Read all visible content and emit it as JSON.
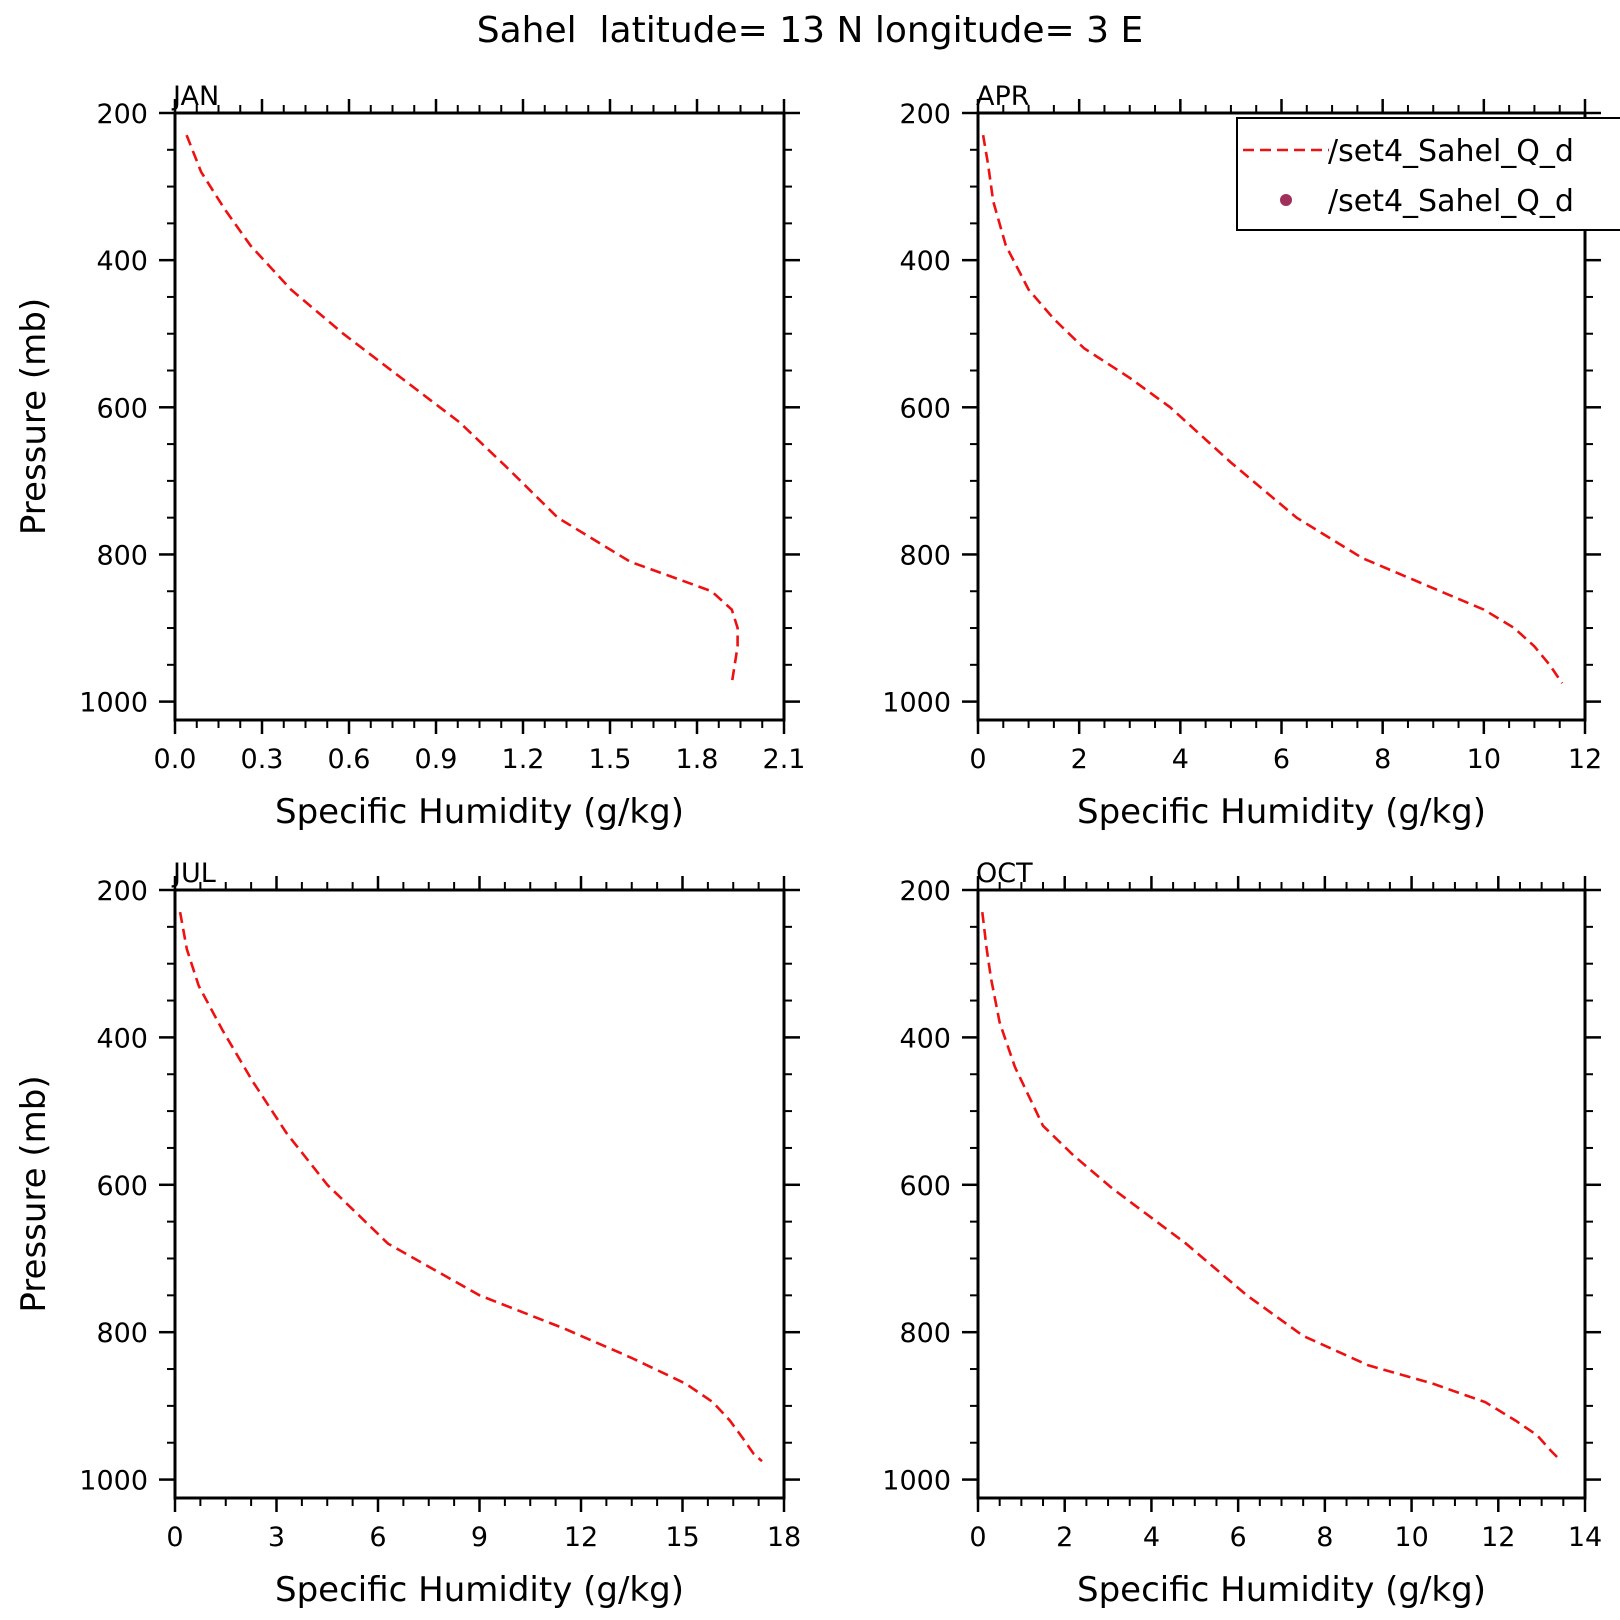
{
  "figure": {
    "title": "Sahel  latitude= 13 N longitude= 3 E",
    "line_color": "#ee1111",
    "marker_color": "#a0305a"
  },
  "legend": {
    "placement": "top-right of APR panel",
    "entries": [
      {
        "label": "/set4_Sahel_Q_d",
        "style": "dashed-line"
      },
      {
        "label": "/set4_Sahel_Q_d",
        "style": "dot-marker"
      }
    ]
  },
  "chart_data": [
    {
      "type": "line",
      "panel": "JAN",
      "xlabel": "Specific Humidity (g/kg)",
      "ylabel": "Pressure (mb)",
      "xlim": [
        0.0,
        2.1
      ],
      "ylim": [
        200,
        1025
      ],
      "y_inverted": true,
      "xticks": [
        "0.0",
        "0.3",
        "0.6",
        "0.9",
        "1.2",
        "1.5",
        "1.8",
        "2.1"
      ],
      "yticks": [
        "200",
        "400",
        "600",
        "800",
        "1000"
      ],
      "series": [
        {
          "x": [
            0.04,
            0.09,
            0.17,
            0.26,
            0.4,
            0.58,
            0.78,
            0.98,
            1.14,
            1.32,
            1.57,
            1.85,
            1.92,
            1.94,
            1.94,
            1.93,
            1.92
          ],
          "y": [
            230,
            280,
            330,
            380,
            440,
            500,
            560,
            620,
            680,
            750,
            810,
            850,
            875,
            900,
            925,
            950,
            975
          ]
        }
      ]
    },
    {
      "type": "line",
      "panel": "APR",
      "xlabel": "Specific Humidity (g/kg)",
      "ylabel": "",
      "xlim": [
        0,
        12
      ],
      "ylim": [
        200,
        1025
      ],
      "y_inverted": true,
      "xticks": [
        "0",
        "2",
        "4",
        "6",
        "8",
        "10",
        "12"
      ],
      "yticks": [
        "200",
        "400",
        "600",
        "800",
        "1000"
      ],
      "series": [
        {
          "x": [
            0.1,
            0.2,
            0.3,
            0.55,
            1.0,
            1.5,
            2.1,
            3.0,
            3.8,
            5.0,
            6.3,
            7.6,
            8.8,
            10.0,
            10.6,
            11.0,
            11.3,
            11.55
          ],
          "y": [
            230,
            270,
            320,
            380,
            440,
            480,
            520,
            560,
            600,
            675,
            750,
            805,
            840,
            875,
            900,
            925,
            950,
            975
          ]
        }
      ]
    },
    {
      "type": "line",
      "panel": "JUL",
      "xlabel": "Specific Humidity (g/kg)",
      "ylabel": "Pressure (mb)",
      "xlim": [
        0,
        18
      ],
      "ylim": [
        200,
        1025
      ],
      "y_inverted": true,
      "xticks": [
        "0",
        "3",
        "6",
        "9",
        "12",
        "15",
        "18"
      ],
      "yticks": [
        "200",
        "400",
        "600",
        "800",
        "1000"
      ],
      "series": [
        {
          "x": [
            0.15,
            0.35,
            0.7,
            1.4,
            2.3,
            3.3,
            4.5,
            6.3,
            9.0,
            11.5,
            13.5,
            15.1,
            15.9,
            16.4,
            16.8,
            17.1,
            17.35
          ],
          "y": [
            230,
            280,
            330,
            390,
            460,
            530,
            600,
            680,
            750,
            795,
            835,
            870,
            895,
            920,
            945,
            965,
            975
          ]
        }
      ]
    },
    {
      "type": "line",
      "panel": "OCT",
      "xlabel": "Specific Humidity (g/kg)",
      "ylabel": "",
      "xlim": [
        0,
        14
      ],
      "ylim": [
        200,
        1025
      ],
      "y_inverted": true,
      "xticks": [
        "0",
        "2",
        "4",
        "6",
        "8",
        "10",
        "12",
        "14"
      ],
      "yticks": [
        "200",
        "400",
        "600",
        "800",
        "1000"
      ],
      "series": [
        {
          "x": [
            0.1,
            0.2,
            0.3,
            0.5,
            0.85,
            1.5,
            2.2,
            3.1,
            4.8,
            6.2,
            7.5,
            9.0,
            10.5,
            11.7,
            12.4,
            12.9,
            13.2,
            13.45
          ],
          "y": [
            230,
            280,
            320,
            380,
            440,
            520,
            560,
            605,
            680,
            750,
            805,
            845,
            870,
            895,
            920,
            940,
            960,
            975
          ]
        }
      ]
    }
  ]
}
